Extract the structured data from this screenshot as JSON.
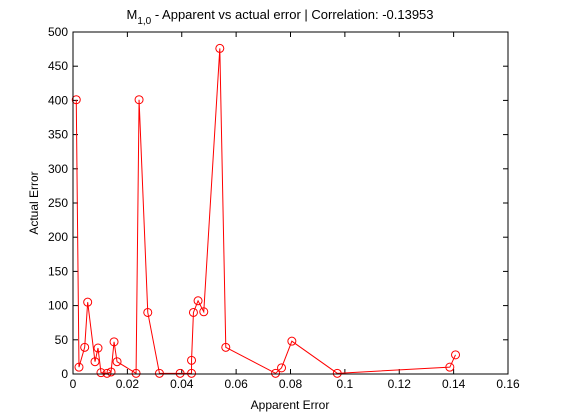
{
  "chart_data": {
    "type": "scatter",
    "title": {
      "main": "M",
      "subscript": "1,0",
      "rest": " - Apparent vs actual error |  Correlation: -0.13953"
    },
    "xlabel": "Apparent Error",
    "ylabel": "Actual Error",
    "xlim": [
      0,
      0.16
    ],
    "ylim": [
      0,
      500
    ],
    "xticks": [
      0,
      0.02,
      0.04,
      0.06,
      0.08,
      0.1,
      0.12,
      0.14,
      0.16
    ],
    "xtick_labels": [
      "0",
      "0.02",
      "0.04",
      "0.06",
      "0.08",
      "0.1",
      "0.12",
      "0.14",
      "0.16"
    ],
    "yticks": [
      0,
      50,
      100,
      150,
      200,
      250,
      300,
      350,
      400,
      450,
      500
    ],
    "ytick_labels": [
      "0",
      "50",
      "100",
      "150",
      "200",
      "250",
      "300",
      "350",
      "400",
      "450",
      "500"
    ],
    "grid": false,
    "line_color": "#ff0000",
    "marker": "circle",
    "series": [
      {
        "points": [
          [
            0.0012,
            401
          ],
          [
            0.0022,
            10
          ],
          [
            0.0043,
            39
          ],
          [
            0.0054,
            105
          ],
          [
            0.0081,
            18
          ],
          [
            0.0092,
            38
          ],
          [
            0.0103,
            2
          ],
          [
            0.0125,
            1
          ],
          [
            0.014,
            3
          ],
          [
            0.0151,
            47
          ],
          [
            0.0162,
            18
          ],
          [
            0.0232,
            1
          ],
          [
            0.0243,
            401
          ],
          [
            0.0275,
            90
          ],
          [
            0.0318,
            1
          ],
          [
            0.0394,
            1
          ],
          [
            0.0436,
            1
          ],
          [
            0.0436,
            20
          ],
          [
            0.0443,
            90
          ],
          [
            0.046,
            107
          ],
          [
            0.0481,
            91
          ],
          [
            0.054,
            476
          ],
          [
            0.0562,
            39
          ],
          [
            0.0745,
            1
          ],
          [
            0.0767,
            9
          ],
          [
            0.0805,
            48
          ],
          [
            0.0972,
            1
          ],
          [
            0.1386,
            10
          ],
          [
            0.1407,
            28
          ]
        ]
      }
    ]
  }
}
